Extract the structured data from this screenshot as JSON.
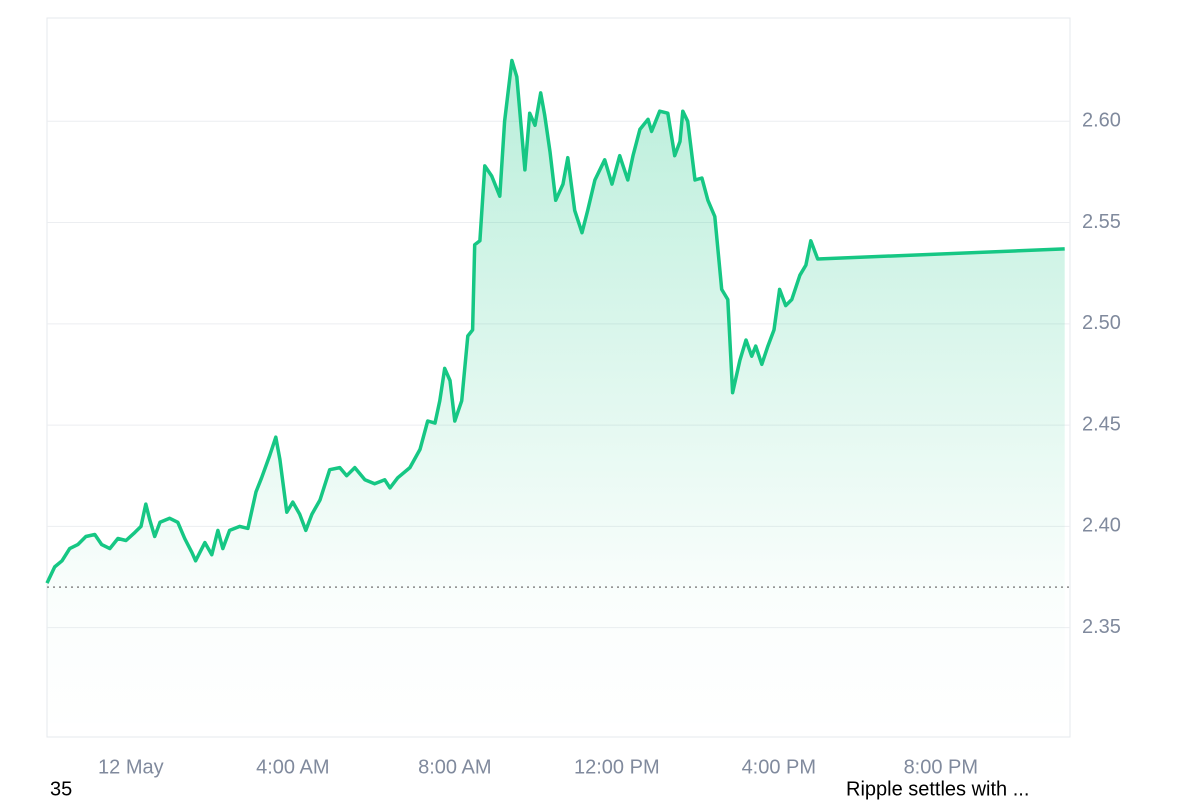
{
  "chart_data": {
    "type": "line",
    "x": [
      -2.07,
      -1.88,
      -1.7,
      -1.51,
      -1.31,
      -1.11,
      -0.89,
      -0.72,
      -0.52,
      -0.32,
      -0.12,
      0.1,
      0.25,
      0.37,
      0.47,
      0.59,
      0.72,
      0.96,
      1.16,
      1.33,
      1.51,
      1.6,
      1.83,
      2.0,
      2.15,
      2.27,
      2.44,
      2.69,
      2.89,
      3.09,
      3.23,
      3.43,
      3.58,
      3.68,
      3.85,
      4.0,
      4.17,
      4.32,
      4.47,
      4.67,
      4.91,
      5.16,
      5.33,
      5.53,
      5.78,
      6.02,
      6.27,
      6.4,
      6.59,
      6.89,
      7.14,
      7.33,
      7.51,
      7.63,
      7.75,
      7.88,
      8.0,
      8.17,
      8.32,
      8.44,
      8.49,
      8.62,
      8.74,
      8.91,
      9.11,
      9.23,
      9.41,
      9.53,
      9.73,
      9.85,
      9.98,
      10.12,
      10.22,
      10.35,
      10.49,
      10.67,
      10.79,
      10.96,
      11.14,
      11.28,
      11.46,
      11.7,
      11.88,
      12.07,
      12.27,
      12.4,
      12.57,
      12.77,
      12.86,
      13.06,
      13.26,
      13.43,
      13.56,
      13.63,
      13.75,
      13.93,
      14.1,
      14.25,
      14.42,
      14.59,
      14.74,
      14.86,
      15.04,
      15.19,
      15.33,
      15.43,
      15.58,
      15.73,
      15.88,
      16.02,
      16.17,
      16.32,
      16.52,
      16.67,
      16.79,
      16.96,
      23.06
    ],
    "values": [
      2.372,
      2.38,
      2.383,
      2.389,
      2.391,
      2.395,
      2.396,
      2.391,
      2.389,
      2.394,
      2.393,
      2.397,
      2.4,
      2.411,
      2.403,
      2.395,
      2.402,
      2.404,
      2.402,
      2.394,
      2.387,
      2.383,
      2.392,
      2.386,
      2.398,
      2.389,
      2.398,
      2.4,
      2.399,
      2.417,
      2.424,
      2.435,
      2.444,
      2.433,
      2.407,
      2.412,
      2.406,
      2.398,
      2.406,
      2.413,
      2.428,
      2.429,
      2.425,
      2.429,
      2.423,
      2.421,
      2.423,
      2.419,
      2.424,
      2.429,
      2.438,
      2.452,
      2.451,
      2.462,
      2.478,
      2.472,
      2.452,
      2.462,
      2.494,
      2.497,
      2.539,
      2.541,
      2.578,
      2.573,
      2.563,
      2.6,
      2.63,
      2.622,
      2.576,
      2.604,
      2.598,
      2.614,
      2.603,
      2.585,
      2.561,
      2.569,
      2.582,
      2.556,
      2.545,
      2.556,
      2.571,
      2.581,
      2.569,
      2.583,
      2.571,
      2.583,
      2.596,
      2.601,
      2.595,
      2.605,
      2.604,
      2.583,
      2.59,
      2.605,
      2.6,
      2.571,
      2.572,
      2.561,
      2.553,
      2.517,
      2.512,
      2.466,
      2.482,
      2.492,
      2.484,
      2.489,
      2.48,
      2.489,
      2.497,
      2.517,
      2.509,
      2.512,
      2.524,
      2.529,
      2.541,
      2.532,
      2.537
    ],
    "color": "#16c784",
    "baseline": 2.37,
    "xlim": [
      -2.07,
      23.19
    ],
    "xticks": [
      {
        "value": 0,
        "label": "12 May"
      },
      {
        "value": 4,
        "label": "4:00 AM"
      },
      {
        "value": 8,
        "label": "8:00 AM"
      },
      {
        "value": 12,
        "label": "12:00 PM"
      },
      {
        "value": 16,
        "label": "4:00 PM"
      },
      {
        "value": 20,
        "label": "8:00 PM"
      }
    ],
    "ylim": [
      2.296,
      2.651
    ],
    "yticks": [
      2.35,
      {
        "value": 2.4,
        "label": "2.40"
      },
      2.45,
      {
        "value": 2.5,
        "label": "2.50"
      },
      2.55,
      {
        "value": 2.6,
        "label": "2.60"
      }
    ],
    "grid": true,
    "footer": [
      "35",
      "Ripple settles with ..."
    ]
  }
}
